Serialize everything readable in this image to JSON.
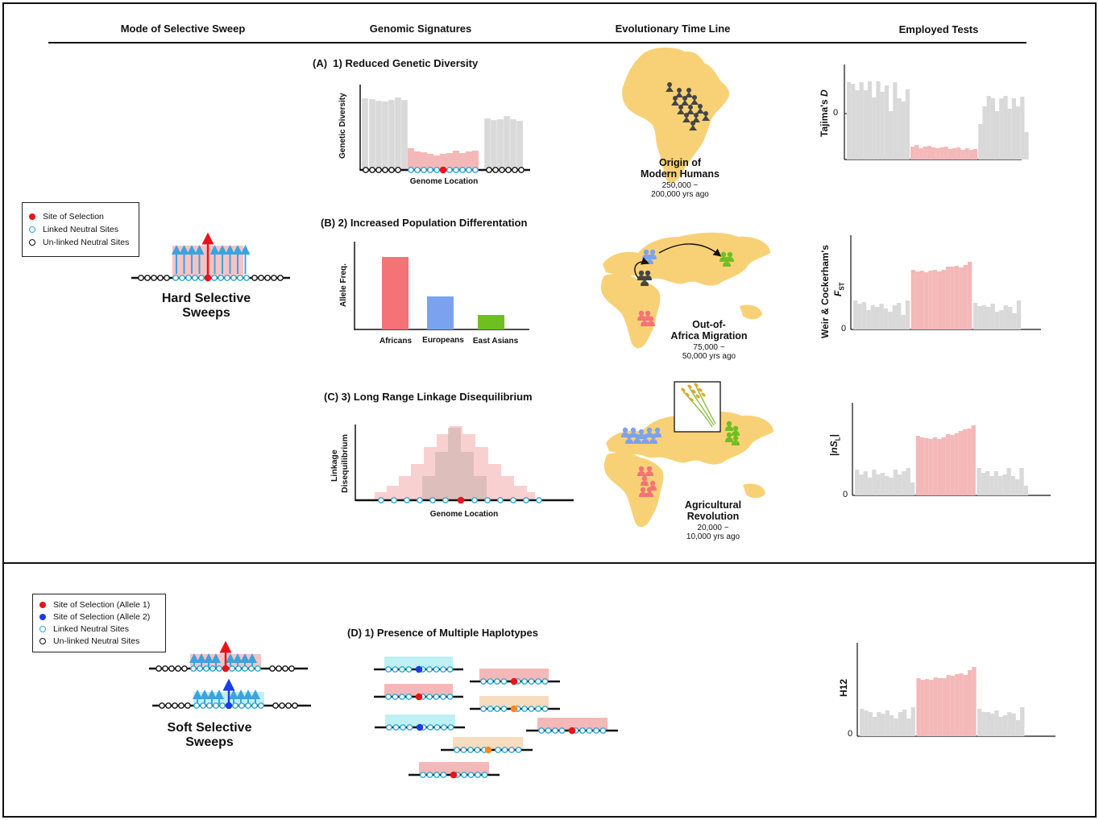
{
  "headers": {
    "mode": "Mode of Selective Sweep",
    "signatures": "Genomic Signatures",
    "timeline": "Evolutionary Time Line",
    "tests": "Employed Tests"
  },
  "hard_legend": {
    "items": [
      "Site of Selection",
      "Linked Neutral Sites",
      "Un-linked Neutral Sites"
    ]
  },
  "hard_sweeps": {
    "line1": "Hard Selective",
    "line2": "Sweeps"
  },
  "soft_legend": {
    "items": [
      "Site of Selection (Allele 1)",
      "Site of Selection (Allele 2)",
      "Linked Neutral Sites",
      "Un-linked Neutral Sites"
    ]
  },
  "soft_sweeps": {
    "line1": "Soft Selective",
    "line2": "Sweeps"
  },
  "panel_a": {
    "letter": "(A)",
    "title": "1) Reduced Genetic Diversity",
    "ylabel": "Genetic Diversity",
    "xlabel": "Genome Location"
  },
  "panel_b": {
    "letter": "(B)",
    "title": "2) Increased Population Differentation",
    "ylabel": "Allele Freq.",
    "categories": [
      "Africans",
      "Europeans",
      "East Asians"
    ],
    "values": [
      0.9,
      0.41,
      0.18
    ]
  },
  "panel_c": {
    "letter": "(C)",
    "title": "3) Long Range Linkage Disequilibrium",
    "ylabel1": "Linkage",
    "ylabel2": "Disequilibrium",
    "xlabel": "Genome Location"
  },
  "panel_d": {
    "letter": "(D)",
    "title": "1) Presence of Multiple Haplotypes"
  },
  "timeline": {
    "origin": {
      "line1": "Origin of",
      "line2": "Modern Humans",
      "date1": "250,000 ~",
      "date2": "200,000 yrs ago"
    },
    "ooa": {
      "line1": "Out-of-",
      "line2": "Africa Migration",
      "date1": "75,000 ~",
      "date2": "50,000 yrs ago"
    },
    "agri": {
      "line1": "Agricultural",
      "line2": "Revolution",
      "date1": "20,000 ~",
      "date2": "10,000 yrs ago"
    }
  },
  "tests": {
    "tajima": {
      "label": "Tajima's ",
      "label_italic": "D",
      "tick": "0"
    },
    "fst": {
      "label": "Weir & Cockerham's",
      "label_italic": "F",
      "label_sub": "ST",
      "tick": "0"
    },
    "nsl": {
      "label_pre": "|",
      "label_italic": "nS",
      "label_sub": "L",
      "label_post": "|",
      "tick": "0"
    },
    "h12": {
      "label": "H12",
      "tick": "0"
    }
  },
  "colors": {
    "red": "#e8131b",
    "blue": "#1a3de8",
    "cyan": "#27a9d8",
    "arrow_blue": "#3ba3e0",
    "pink": "#f5b8b8",
    "grey": "#d9d9d9",
    "map": "#f8d176",
    "africans": "#f57277",
    "europeans": "#7ba2ee",
    "east_asians": "#6fbf22",
    "orange": "#f08c21"
  }
}
